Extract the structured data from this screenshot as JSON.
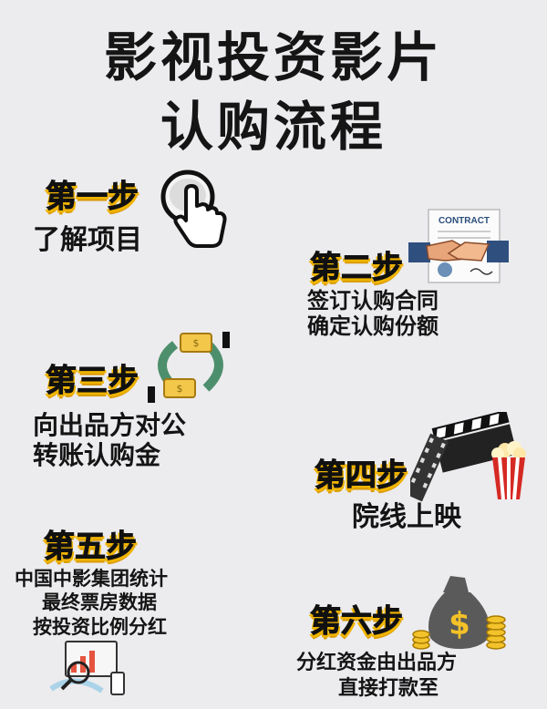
{
  "title": {
    "line1": "影视投资影片",
    "line2": "认购流程"
  },
  "steps": [
    {
      "label": "第一步",
      "lines": [
        "了解项目"
      ]
    },
    {
      "label": "第二步",
      "lines": [
        "签订认购合同",
        "确定认购份额"
      ]
    },
    {
      "label": "第三步",
      "lines": [
        "向出品方对公",
        "转账认购金"
      ]
    },
    {
      "label": "第四步",
      "lines": [
        "院线上映"
      ]
    },
    {
      "label": "第五步",
      "lines": [
        "中国中影集团统计",
        "最终票房数据",
        "按投资比例分红"
      ]
    },
    {
      "label": "第六步",
      "lines": [
        "分红资金由出品方",
        "直接打款至"
      ]
    }
  ],
  "icons": {
    "step1": "magnifier-hand-icon",
    "step2": "contract-handshake-icon",
    "step3": "money-transfer-icon",
    "step4": "film-popcorn-icon",
    "step5": "data-analysis-icon",
    "step6": "money-bag-icon"
  },
  "contract_text": "CONTRACT",
  "colors": {
    "background": "#ecebee",
    "text": "#141414",
    "accent": "#f0b400"
  }
}
